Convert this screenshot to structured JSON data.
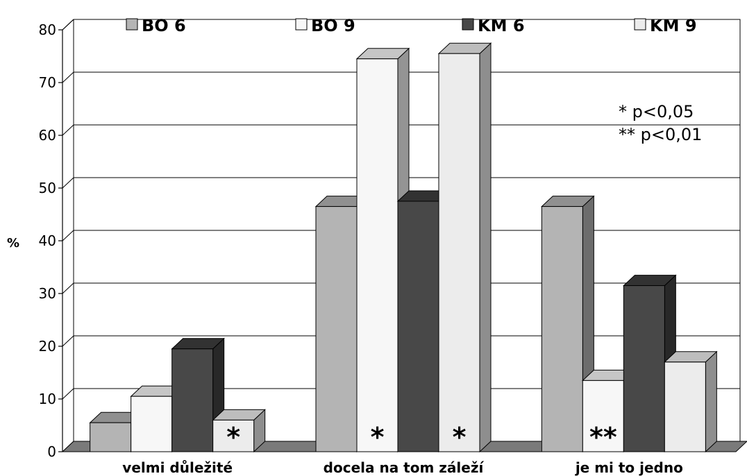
{
  "chart_data": {
    "type": "bar",
    "title": "",
    "xlabel": "",
    "ylabel": "%",
    "ylim": [
      0,
      80
    ],
    "yticks": [
      0,
      10,
      20,
      30,
      40,
      50,
      60,
      70,
      80
    ],
    "grid": true,
    "legend_position": "top",
    "categories": [
      "velmi důležité",
      "docela na tom záleží",
      "je mi to jedno"
    ],
    "series": [
      {
        "name": "BO 6",
        "values": [
          5.5,
          46.5,
          46.5
        ],
        "color": "#b4b4b4"
      },
      {
        "name": "BO 9",
        "values": [
          10.5,
          74.5,
          13.5
        ],
        "color": "#f7f7f7"
      },
      {
        "name": "KM 6",
        "values": [
          19.5,
          47.5,
          31.5
        ],
        "color": "#484848"
      },
      {
        "name": "KM 9",
        "values": [
          6,
          75.5,
          17
        ],
        "color": "#ececec"
      }
    ],
    "significance_marks": [
      {
        "category": 0,
        "series": 3,
        "text": "*"
      },
      {
        "category": 1,
        "series": 1,
        "text": "*"
      },
      {
        "category": 1,
        "series": 3,
        "text": "*"
      },
      {
        "category": 2,
        "series": 1,
        "text": "**"
      }
    ],
    "annotations": [
      "*  p<0,05",
      "** p<0,01"
    ]
  }
}
